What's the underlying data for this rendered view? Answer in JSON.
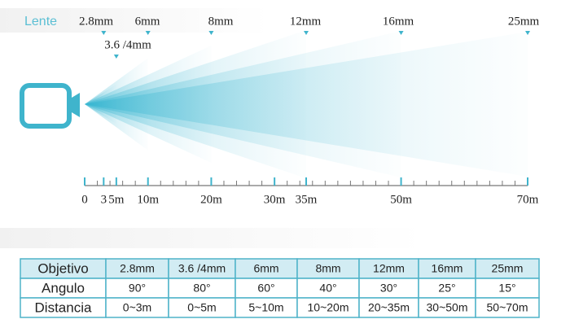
{
  "lens_label": "Lente",
  "lenses": [
    "2.8mm",
    "3.6 /4mm",
    "6mm",
    "8mm",
    "12mm",
    "16mm",
    "25mm"
  ],
  "scale": {
    "ticks": [
      0,
      3,
      {
        "value": 5,
        "label": "5m"
      },
      {
        "value": 10,
        "label": "10m"
      },
      {
        "value": 20,
        "label": "20m"
      },
      {
        "value": 30,
        "label": "30m"
      },
      {
        "value": 35,
        "label": "35m"
      },
      {
        "value": 50,
        "label": "50m"
      },
      {
        "value": 70,
        "label": "70m"
      }
    ]
  },
  "table": {
    "rows": [
      [
        "Objetivo",
        "2.8mm",
        "3.6 /4mm",
        "6mm",
        "8mm",
        "12mm",
        "16mm",
        "25mm"
      ],
      [
        "Angulo",
        "90°",
        "80°",
        "60°",
        "40°",
        "30°",
        "25°",
        "15°"
      ],
      [
        "Distancia",
        "0~3m",
        "0~5m",
        "5~10m",
        "10~20m",
        "20~35m",
        "30~50m",
        "50~70m"
      ]
    ]
  }
}
